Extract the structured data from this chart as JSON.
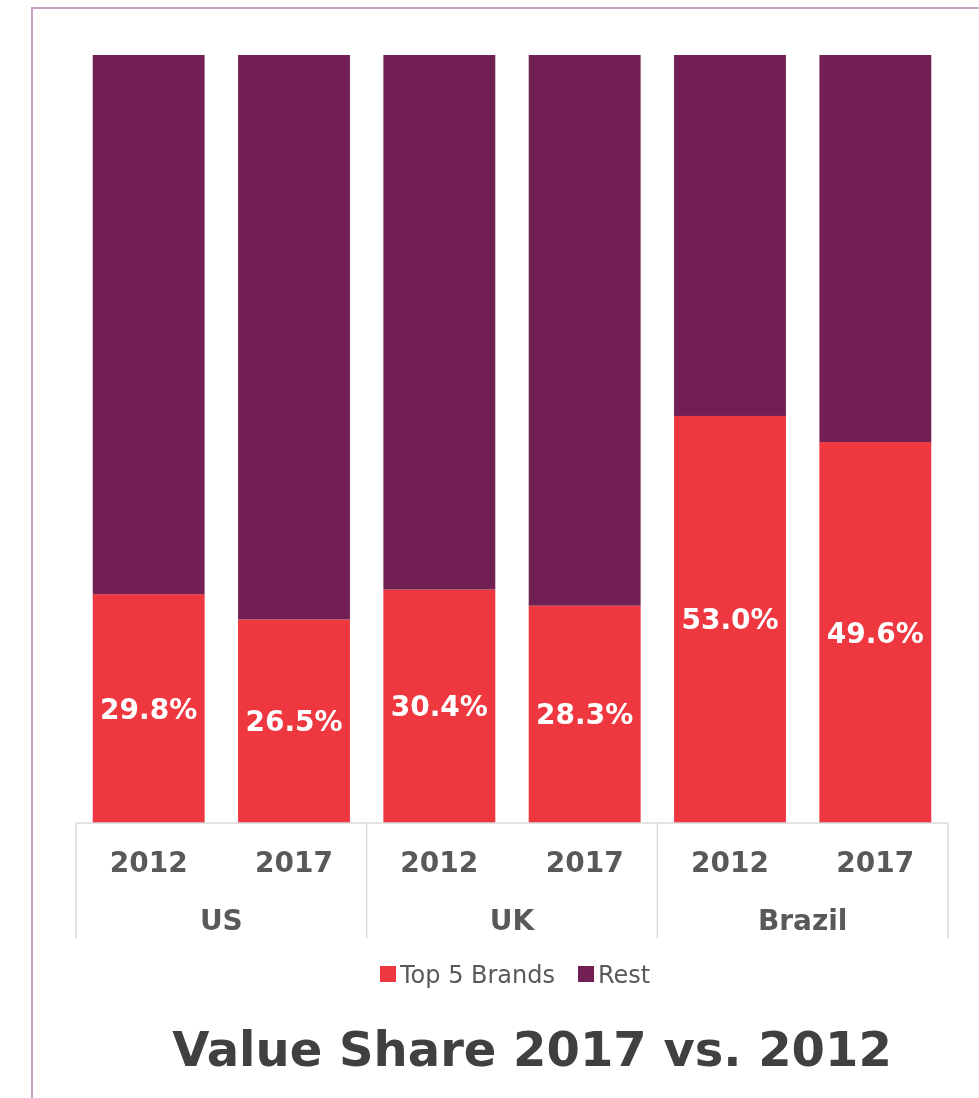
{
  "chart_data": {
    "type": "bar",
    "title": "Value Share 2017 vs. 2012",
    "stacked": true,
    "categories": [
      "2012",
      "2017",
      "2012",
      "2017",
      "2012",
      "2017"
    ],
    "series": [
      {
        "name": "Top 5 Brands",
        "color": "#ef3740",
        "values": [
          29.8,
          26.5,
          30.4,
          28.3,
          53.0,
          49.6
        ],
        "value_labels": [
          "29.8%",
          "26.5%",
          "30.4%",
          "28.3%",
          "53.0%",
          "49.6%"
        ]
      },
      {
        "name": "Rest",
        "color": "#722053",
        "values": [
          70.2,
          73.5,
          69.6,
          71.7,
          47.0,
          50.4
        ]
      }
    ],
    "ylim": [
      0,
      100
    ],
    "tick_labels": "x",
    "legend": "bottom",
    "annotations": [
      "US",
      "UK",
      "Brazil"
    ]
  }
}
